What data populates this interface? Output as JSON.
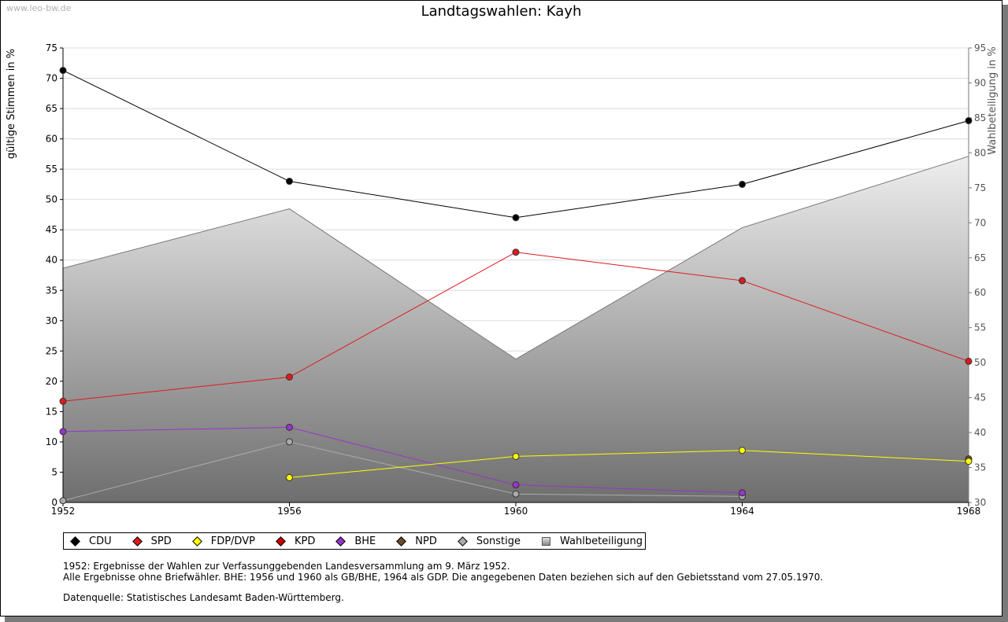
{
  "watermark": "www.leo-bw.de",
  "chart_data": {
    "type": "line",
    "title": "Landtagswahlen: Kayh",
    "ylabel": "gültige Stimmen in %",
    "y2label": "Wahlbeteiligung in %",
    "x": [
      1952,
      1956,
      1960,
      1964,
      1968
    ],
    "ylim": [
      0,
      75
    ],
    "yticks": [
      0,
      5,
      10,
      15,
      20,
      25,
      30,
      35,
      40,
      45,
      50,
      55,
      60,
      65,
      70,
      75
    ],
    "y2lim": [
      30,
      95
    ],
    "y2ticks": [
      30,
      35,
      40,
      45,
      50,
      55,
      60,
      65,
      70,
      75,
      80,
      85,
      90,
      95
    ],
    "grid": true,
    "legend_position": "bottom",
    "series": [
      {
        "name": "CDU",
        "color": "#000000",
        "values": [
          71.3,
          53.0,
          47.0,
          52.5,
          63.0
        ]
      },
      {
        "name": "SPD",
        "color": "#e0181c",
        "values": [
          16.7,
          20.7,
          41.3,
          36.6,
          23.3
        ]
      },
      {
        "name": "FDP/DVP",
        "color": "#ffff00",
        "values": [
          null,
          4.1,
          7.6,
          8.6,
          6.8
        ]
      },
      {
        "name": "KPD",
        "color": "#cc0000",
        "values": [
          null,
          null,
          null,
          null,
          null
        ]
      },
      {
        "name": "BHE",
        "color": "#9933cc",
        "values": [
          11.7,
          12.4,
          2.9,
          1.6,
          null
        ]
      },
      {
        "name": "NPD",
        "color": "#6b4a2e",
        "values": [
          null,
          null,
          null,
          null,
          7.2
        ]
      },
      {
        "name": "Sonstige",
        "color": "#aaaaaa",
        "values": [
          0.3,
          10.0,
          1.4,
          1.0,
          null
        ]
      },
      {
        "name": "Wahlbeteiligung",
        "color": "#888888",
        "axis": "right",
        "values": [
          63.5,
          72.0,
          50.5,
          69.3,
          79.5
        ]
      }
    ]
  },
  "notes": {
    "line1": "1952: Ergebnisse der Wahlen zur Verfassunggebenden Landesversammlung am 9. März 1952.",
    "line2": "Alle Ergebnisse ohne Briefwähler. BHE: 1956 und 1960 als GB/BHE, 1964 als GDP. Die angegebenen Daten beziehen sich auf den Gebietsstand vom 27.05.1970.",
    "source": "Datenquelle: Statistisches Landesamt Baden-Württemberg."
  }
}
